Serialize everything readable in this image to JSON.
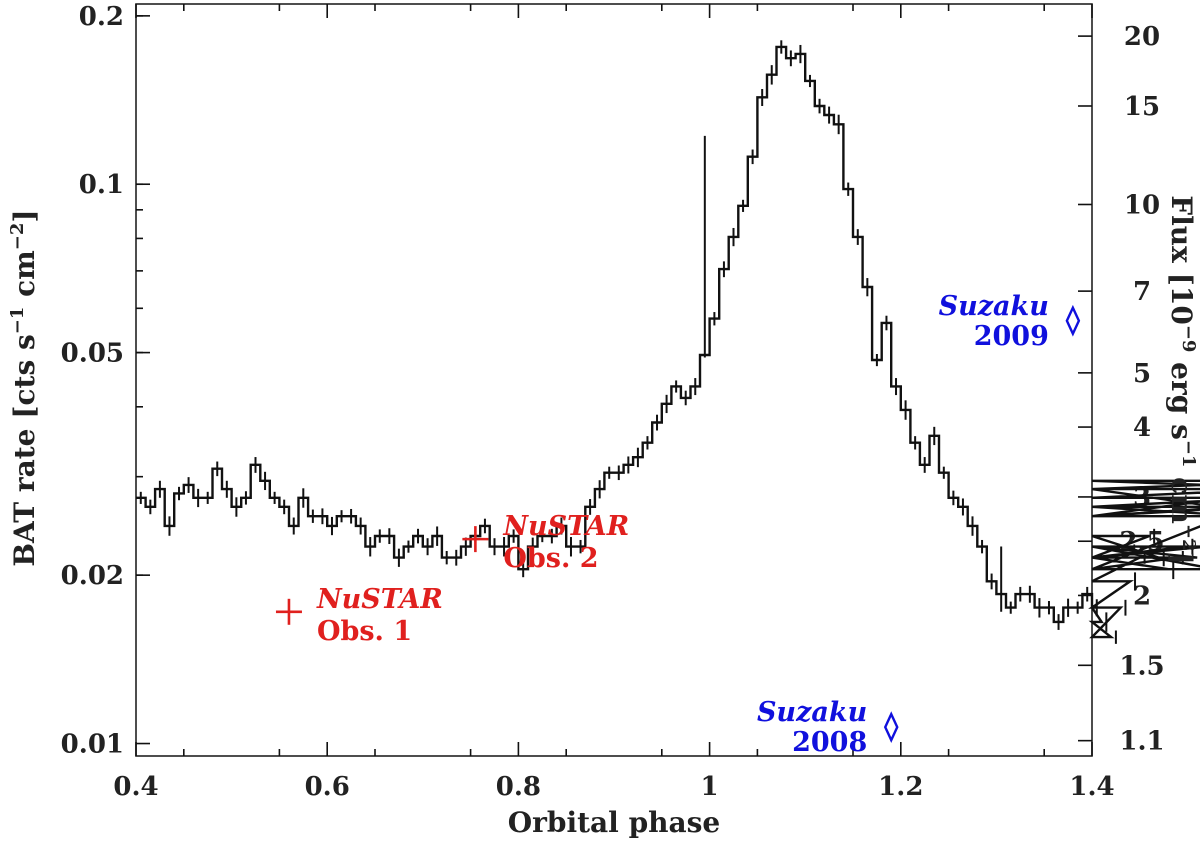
{
  "chart_data": {
    "type": "line",
    "xlabel": "Orbital phase",
    "ylabel_left": {
      "main": "BAT rate [cts s",
      "exp1": "−1",
      "mid": " cm",
      "exp2": "−2",
      "end": "]"
    },
    "ylabel_right": {
      "main": "Flux [10",
      "exp1": "−9",
      "mid1": " erg s",
      "exp2": "−1",
      "mid2": " cm",
      "exp3": "−2",
      "end": "]"
    },
    "xlim": [
      0.4,
      1.4
    ],
    "ylim_left": [
      0.0095,
      0.21
    ],
    "yscale": "log",
    "x_ticks": [
      {
        "v": 0.4,
        "label": "0.4"
      },
      {
        "v": 0.6,
        "label": "0.6"
      },
      {
        "v": 0.8,
        "label": "0.8"
      },
      {
        "v": 1.0,
        "label": "1"
      },
      {
        "v": 1.2,
        "label": "1.2"
      },
      {
        "v": 1.4,
        "label": "1.4"
      }
    ],
    "y_ticks_left": [
      {
        "v": 0.01,
        "label": "0.01"
      },
      {
        "v": 0.02,
        "label": "0.02"
      },
      {
        "v": 0.05,
        "label": "0.05"
      },
      {
        "v": 0.1,
        "label": "0.1"
      },
      {
        "v": 0.2,
        "label": "0.2"
      }
    ],
    "y_ticks_right": [
      {
        "flux": 1.1,
        "label": "1.1"
      },
      {
        "flux": 1.5,
        "label": "1.5"
      },
      {
        "flux": 2,
        "label": "2"
      },
      {
        "flux": 2.5,
        "label": "2.5"
      },
      {
        "flux": 3,
        "label": "3"
      },
      {
        "flux": 4,
        "label": "4"
      },
      {
        "flux": 5,
        "label": "5"
      },
      {
        "flux": 7,
        "label": "7"
      },
      {
        "flux": 10,
        "label": "10"
      },
      {
        "flux": 15,
        "label": "15"
      },
      {
        "flux": 20,
        "label": "20"
      }
    ],
    "flux_per_rate": 108.7,
    "bat_lightcurve": {
      "bin_width": 0.01,
      "x_start": 0.4,
      "values": [
        0.0275,
        0.0265,
        0.0285,
        0.0245,
        0.028,
        0.029,
        0.0275,
        0.0275,
        0.031,
        0.0285,
        0.0265,
        0.0275,
        0.0315,
        0.0295,
        0.0275,
        0.0265,
        0.0245,
        0.0275,
        0.0255,
        0.0255,
        0.0245,
        0.0255,
        0.0255,
        0.0245,
        0.0225,
        0.0235,
        0.0235,
        0.0215,
        0.0225,
        0.0235,
        0.0225,
        0.0235,
        0.0215,
        0.0215,
        0.0225,
        0.0235,
        0.0245,
        0.0225,
        0.0225,
        0.0235,
        0.0205,
        0.0225,
        0.0235,
        0.0235,
        0.0245,
        0.0225,
        0.0225,
        0.0265,
        0.0285,
        0.0305,
        0.0305,
        0.0315,
        0.0325,
        0.0345,
        0.0375,
        0.0405,
        0.0435,
        0.0415,
        0.0435,
        0.0495,
        0.0575,
        0.0705,
        0.0805,
        0.0915,
        0.112,
        0.143,
        0.157,
        0.176,
        0.168,
        0.171,
        0.153,
        0.138,
        0.133,
        0.128,
        0.098,
        0.0805,
        0.0655,
        0.0485,
        0.0565,
        0.0435,
        0.0395,
        0.0345,
        0.0315,
        0.0355,
        0.0305,
        0.0275,
        0.0265,
        0.0245,
        0.0225,
        0.0195,
        0.0185,
        0.0175,
        0.0185,
        0.0185,
        0.0175,
        0.0175,
        0.0165,
        0.0175,
        0.0175,
        0.0185,
        0.0175,
        0.0165,
        0.0155,
        0.0175,
        0.0195,
        0.0215,
        0.0235,
        0.0215,
        0.0205,
        0.0215,
        0.0225,
        0.0215,
        0.0225,
        0.0205,
        0.0255,
        0.0265,
        0.0255,
        0.0265,
        0.0275,
        0.0285,
        0.0255,
        0.0285,
        0.0285,
        0.0295,
        0.0285
      ]
    },
    "annotations": [
      {
        "id": "nustar-obs1",
        "name": "NuSTAR",
        "label": "Obs. 1",
        "x": 0.56,
        "y": 0.0172,
        "color": "#e0201e",
        "marker": "cross"
      },
      {
        "id": "nustar-obs2",
        "name": "NuSTAR",
        "label": "Obs. 2",
        "x": 0.755,
        "y": 0.0232,
        "color": "#e0201e",
        "marker": "cross"
      },
      {
        "id": "suzaku-2009",
        "name": "Suzaku",
        "label": "2009",
        "x": 1.38,
        "y": 0.057,
        "color": "#1010dd",
        "marker": "diamond"
      },
      {
        "id": "suzaku-2008",
        "name": "Suzaku",
        "label": "2008",
        "x": 1.19,
        "y": 0.0107,
        "color": "#1010dd",
        "marker": "diamond"
      }
    ],
    "grid": false,
    "legend": "none"
  }
}
